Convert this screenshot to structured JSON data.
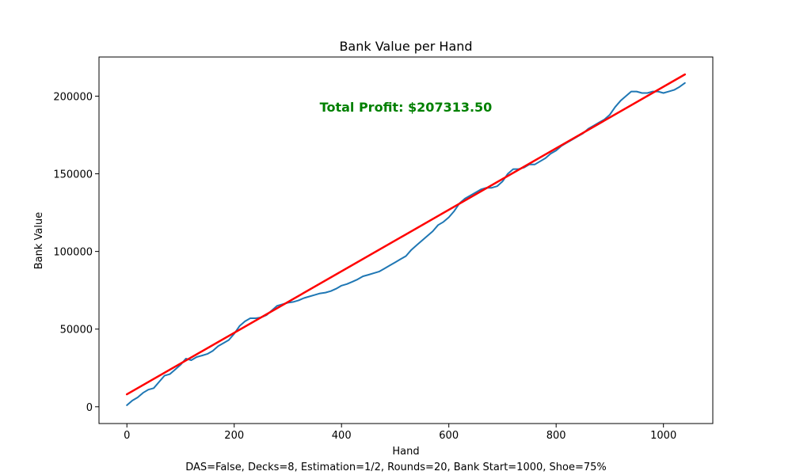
{
  "chart_data": {
    "type": "line",
    "title": "Bank Value per Hand",
    "xlabel": "Hand",
    "ylabel": "Bank Value",
    "annotation": "Total Profit: $207313.50",
    "annotation_color": "#008000",
    "footer": "DAS=False, Decks=8, Estimation=1/2, Rounds=20, Bank Start=1000, Shoe=75%",
    "xlim": [
      -52,
      1092
    ],
    "ylim": [
      -10800,
      225200
    ],
    "xticks": [
      0,
      200,
      400,
      600,
      800,
      1000
    ],
    "xtick_labels": [
      "0",
      "200",
      "400",
      "600",
      "800",
      "1000"
    ],
    "yticks": [
      0,
      50000,
      100000,
      150000,
      200000
    ],
    "ytick_labels": [
      "0",
      "50000",
      "100000",
      "150000",
      "200000"
    ],
    "grid": false,
    "series": [
      {
        "color": "#1f77b4",
        "x": [
          0,
          10,
          20,
          30,
          40,
          50,
          60,
          70,
          80,
          90,
          100,
          110,
          120,
          130,
          140,
          150,
          160,
          170,
          180,
          190,
          200,
          210,
          220,
          230,
          240,
          250,
          260,
          270,
          280,
          290,
          300,
          310,
          320,
          330,
          340,
          350,
          360,
          370,
          380,
          390,
          400,
          410,
          420,
          430,
          440,
          450,
          460,
          470,
          480,
          490,
          500,
          510,
          520,
          530,
          540,
          550,
          560,
          570,
          580,
          590,
          600,
          610,
          620,
          630,
          640,
          650,
          660,
          670,
          680,
          690,
          700,
          710,
          720,
          730,
          740,
          750,
          760,
          770,
          780,
          790,
          800,
          810,
          820,
          830,
          840,
          850,
          860,
          870,
          880,
          890,
          900,
          910,
          920,
          930,
          940,
          950,
          960,
          970,
          980,
          990,
          1000,
          1010,
          1020,
          1030,
          1040
        ],
        "y": [
          1000,
          4000,
          6000,
          9000,
          11000,
          12000,
          16000,
          20000,
          21000,
          24000,
          27000,
          31000,
          30000,
          32000,
          33000,
          34000,
          36000,
          39000,
          41000,
          43000,
          47000,
          52000,
          55000,
          57000,
          57000,
          57500,
          59000,
          62000,
          65000,
          66000,
          67000,
          67500,
          68500,
          70000,
          71000,
          72000,
          73000,
          73500,
          74500,
          76000,
          78000,
          79000,
          80500,
          82000,
          84000,
          85000,
          86000,
          87000,
          89000,
          91000,
          93000,
          95000,
          97000,
          101000,
          104000,
          107000,
          110000,
          113000,
          117000,
          119000,
          122000,
          126000,
          131000,
          134000,
          136000,
          138000,
          140000,
          141000,
          141000,
          142000,
          145000,
          150000,
          153000,
          153000,
          154000,
          156000,
          156000,
          158000,
          160000,
          163000,
          165000,
          168000,
          170000,
          172000,
          174000,
          176000,
          179000,
          181000,
          183000,
          185000,
          188000,
          193000,
          197000,
          200000,
          203000,
          203000,
          202000,
          202000,
          203000,
          203000,
          202000,
          203000,
          204000,
          206000,
          208500
        ]
      },
      {
        "color": "#ff0000",
        "x": [
          0,
          1040
        ],
        "y": [
          8000,
          214000
        ]
      }
    ]
  }
}
